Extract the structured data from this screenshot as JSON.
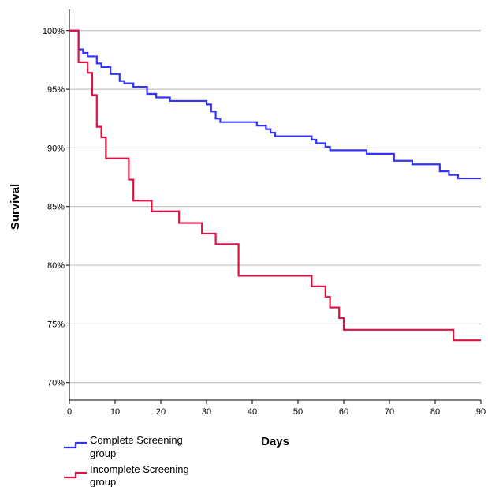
{
  "chart_data": {
    "type": "line",
    "step": true,
    "xlabel": "Days",
    "ylabel": "Survival",
    "xlim": [
      0,
      90
    ],
    "ylim": [
      68.5,
      101.8
    ],
    "x_ticks": [
      0,
      10,
      20,
      30,
      40,
      50,
      60,
      70,
      80,
      90
    ],
    "y_ticks": [
      70,
      75,
      80,
      85,
      90,
      95,
      100
    ],
    "y_tick_labels": [
      "70%",
      "75%",
      "80%",
      "85%",
      "90%",
      "95%",
      "100%"
    ],
    "grid": "horizontal",
    "legend_position": "bottom-left",
    "series": [
      {
        "name": "Complete Screening group",
        "color": "#3333ff",
        "x": [
          0,
          2,
          3,
          4,
          6,
          7,
          9,
          11,
          12,
          14,
          17,
          19,
          22,
          30,
          31,
          32,
          33,
          34,
          41,
          43,
          44,
          45,
          53,
          54,
          56,
          57,
          65,
          71,
          75,
          81,
          83,
          85,
          90
        ],
        "y": [
          100,
          98.4,
          98.1,
          97.8,
          97.2,
          96.9,
          96.3,
          95.7,
          95.5,
          95.2,
          94.6,
          94.3,
          94.0,
          93.7,
          93.1,
          92.5,
          92.2,
          92.2,
          91.9,
          91.6,
          91.3,
          91.0,
          90.7,
          90.4,
          90.1,
          89.8,
          89.5,
          88.9,
          88.6,
          88.0,
          87.7,
          87.4,
          87.4
        ]
      },
      {
        "name": "Incomplete Screening group",
        "color": "#dd1144",
        "x": [
          0,
          2,
          4,
          5,
          6,
          7,
          8,
          13,
          14,
          18,
          24,
          29,
          32,
          37,
          53,
          56,
          57,
          59,
          60,
          84,
          90
        ],
        "y": [
          100,
          97.3,
          96.4,
          94.5,
          91.8,
          90.9,
          89.1,
          87.3,
          85.5,
          84.6,
          83.6,
          82.7,
          81.8,
          79.1,
          78.2,
          77.3,
          76.4,
          75.5,
          74.5,
          73.6,
          73.6
        ]
      }
    ]
  },
  "legend": {
    "items": [
      {
        "label_line1": "Complete Screening",
        "label_line2": "group",
        "color": "#3333ff"
      },
      {
        "label_line1": "Incomplete Screening",
        "label_line2": "group",
        "color": "#dd1144"
      }
    ]
  }
}
